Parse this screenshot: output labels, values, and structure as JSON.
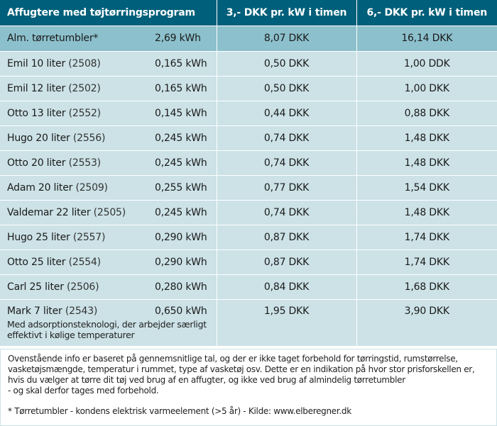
{
  "header": {
    "col1": "Affugtere med tøjtørringsprogram",
    "col2": "3,- DKK pr. kW i timen",
    "col3": "6,- DKK pr. kW i timen"
  },
  "rows": [
    {
      "name": "Alm. tørretumbler*",
      "code": "",
      "kwh": "2,69 kWh",
      "p3": "8,07 DKK",
      "p6": "16,14 DKK"
    },
    {
      "name": "Emil 10 liter",
      "code": "(2508)",
      "kwh": "0,165 kWh",
      "p3": "0,50 DKK",
      "p6": "1,00 DDK"
    },
    {
      "name": "Emil 12 liter",
      "code": "(2502)",
      "kwh": "0,165 kWh",
      "p3": "0,50 DKK",
      "p6": "1,00 DKK"
    },
    {
      "name": "Otto 13 liter",
      "code": "(2552)",
      "kwh": "0,145 kWh",
      "p3": "0,44 DKK",
      "p6": "0,88 DKK"
    },
    {
      "name": "Hugo 20 liter",
      "code": "(2556)",
      "kwh": "0,245 kWh",
      "p3": "0,74 DKK",
      "p6": "1,48 DKK"
    },
    {
      "name": "Otto 20 liter",
      "code": "(2553)",
      "kwh": "0,245 kWh",
      "p3": "0,74 DKK",
      "p6": "1,48 DKK"
    },
    {
      "name": "Adam 20 liter",
      "code": "(2509)",
      "kwh": "0,255 kWh",
      "p3": "0,77 DKK",
      "p6": "1,54 DKK"
    },
    {
      "name": "Valdemar 22 liter",
      "code": "(2505)",
      "kwh": "0,245 kWh",
      "p3": "0,74 DKK",
      "p6": "1,48 DKK"
    },
    {
      "name": "Hugo 25 liter",
      "code": "(2557)",
      "kwh": "0,290 kWh",
      "p3": "0,87 DKK",
      "p6": "1,74 DKK"
    },
    {
      "name": "Otto 25 liter",
      "code": "(2554)",
      "kwh": "0,290 kWh",
      "p3": "0,87 DKK",
      "p6": "1,74 DKK"
    },
    {
      "name": "Carl 25 liter",
      "code": "(2506)",
      "kwh": "0,280 kWh",
      "p3": "0,84 DKK",
      "p6": "1,68 DKK"
    },
    {
      "name": "Mark 7 liter",
      "code": "(2543)",
      "kwh": "0,650 kWh",
      "p3": "1,95 DKK",
      "p6": "3,90 DKK",
      "note": "Med adsorptionsteknologi, der arbejder særligt effektivt i kølige temperaturer"
    }
  ],
  "footer": {
    "text": "Ovenstående info er baseret på gennemsnitlige tal, og der er ikke taget forbehold for tørringstid, rumstørrelse, vasketøjsmængde, temperatur i rummet, type af vasketøj osv. Dette er en indikation på hvor stor prisforskellen er, hvis du vælger at tørre dit tøj ved brug af en affugter, og ikke ved brug af almindelig tørretumbler\n- og skal derfor tages med forbehold.",
    "source": "* Tørretumbler - kondens elektrisk varmeelement (>5 år) - Kilde: www.elberegner.dk"
  },
  "colors": {
    "header_bg": "#005f7a",
    "highlight_row": "#8cc0cc",
    "row_bg": "#cce2e7"
  }
}
